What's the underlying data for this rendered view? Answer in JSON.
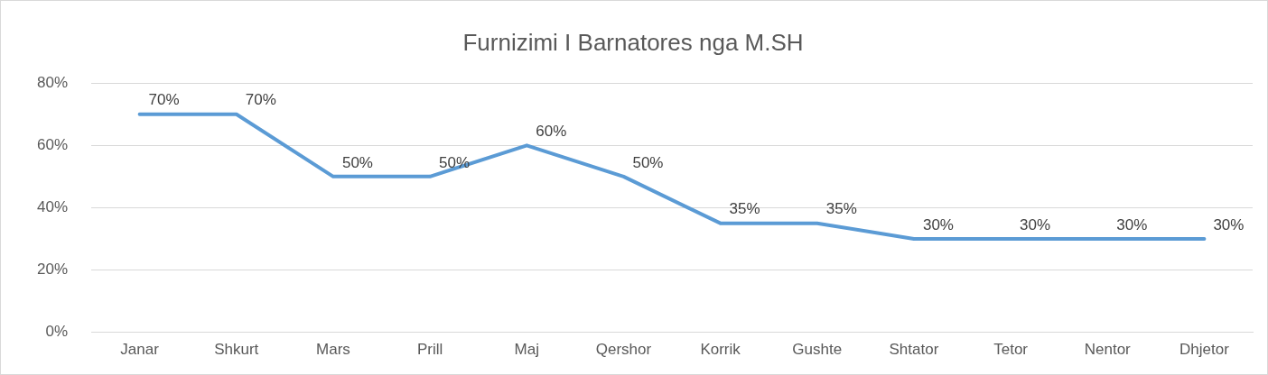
{
  "chart_data": {
    "type": "line",
    "title": "Furnizimi I Barnatores nga M.SH",
    "categories": [
      "Janar",
      "Shkurt",
      "Mars",
      "Prill",
      "Maj",
      "Qershor",
      "Korrik",
      "Gushte",
      "Shtator",
      "Tetor",
      "Nentor",
      "Dhjetor"
    ],
    "series": [
      {
        "color": "#5b9bd5",
        "values": [
          70,
          70,
          50,
          50,
          60,
          50,
          35,
          35,
          30,
          30,
          30,
          30
        ],
        "value_labels": [
          "70%",
          "70%",
          "50%",
          "50%",
          "60%",
          "50%",
          "35%",
          "35%",
          "30%",
          "30%",
          "30%",
          "30%"
        ]
      }
    ],
    "ylim": [
      0,
      80
    ],
    "yticks": [
      {
        "value": 0,
        "label": "0%"
      },
      {
        "value": 20,
        "label": "20%"
      },
      {
        "value": 40,
        "label": "40%"
      },
      {
        "value": 60,
        "label": "60%"
      },
      {
        "value": 80,
        "label": "80%"
      }
    ],
    "grid": "y",
    "legend": false,
    "marker": "none",
    "line_style": "solid"
  }
}
